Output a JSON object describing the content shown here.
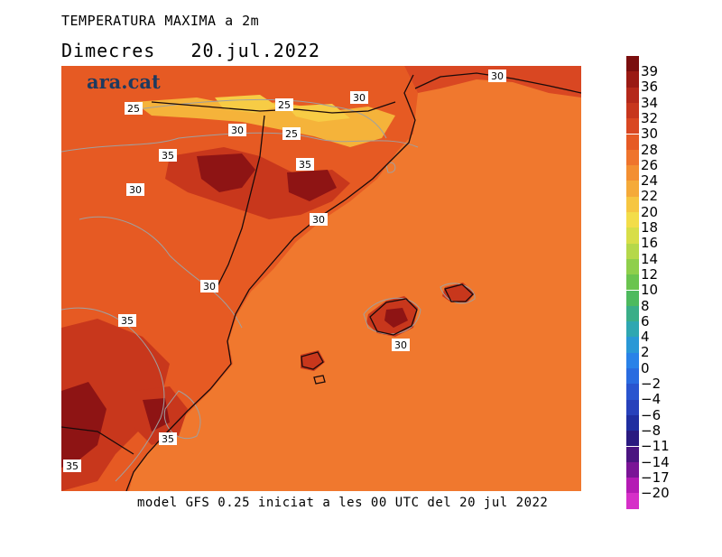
{
  "title": "TEMPERATURA MAXIMA a 2m",
  "subtitle": "Dimecres   20.jul.2022",
  "footer": "model GFS 0.25 iniciat a les 00 UTC del 20 jul 2022",
  "logo": "ara.cat",
  "colors": {
    "sea": "#f0782e",
    "land_warm": "#e65a23",
    "land_hot": "#c8371c",
    "land_hottest": "#8e1414",
    "cool_ridge": "#f5b33a",
    "coolest_ridge": "#f7cc45",
    "coast": "#1a0a0a",
    "contour": "#a0a0a0"
  },
  "contour_labels": [
    {
      "id": "c1",
      "text": "25"
    },
    {
      "id": "c2",
      "text": "25"
    },
    {
      "id": "c3",
      "text": "25"
    },
    {
      "id": "c4",
      "text": "30"
    },
    {
      "id": "c5",
      "text": "30"
    },
    {
      "id": "c6",
      "text": "30"
    },
    {
      "id": "c7",
      "text": "30"
    },
    {
      "id": "c8",
      "text": "30"
    },
    {
      "id": "c9",
      "text": "30"
    },
    {
      "id": "c10",
      "text": "35"
    },
    {
      "id": "c11",
      "text": "35"
    },
    {
      "id": "c12",
      "text": "35"
    },
    {
      "id": "c13",
      "text": "35"
    },
    {
      "id": "c14",
      "text": "35"
    },
    {
      "id": "c15",
      "text": "30"
    },
    {
      "id": "c16",
      "text": "30"
    }
  ],
  "legend": [
    {
      "label": "39",
      "color": "#7a0e0e"
    },
    {
      "label": "36",
      "color": "#9a1a14"
    },
    {
      "label": "34",
      "color": "#b4281a"
    },
    {
      "label": "32",
      "color": "#c7361d"
    },
    {
      "label": "30",
      "color": "#d94722"
    },
    {
      "label": "28",
      "color": "#e65a25"
    },
    {
      "label": "26",
      "color": "#ef742c"
    },
    {
      "label": "24",
      "color": "#f38f31"
    },
    {
      "label": "22",
      "color": "#f5aa39"
    },
    {
      "label": "20",
      "color": "#f6c641"
    },
    {
      "label": "18",
      "color": "#f3dd49"
    },
    {
      "label": "16",
      "color": "#d8de48"
    },
    {
      "label": "14",
      "color": "#b5d84a"
    },
    {
      "label": "12",
      "color": "#8fcf4b"
    },
    {
      "label": "10",
      "color": "#6ac44f"
    },
    {
      "label": "8",
      "color": "#4dba5e"
    },
    {
      "label": "6",
      "color": "#3aae88"
    },
    {
      "label": "4",
      "color": "#2fa7b1"
    },
    {
      "label": "2",
      "color": "#2a98d6"
    },
    {
      "label": "0",
      "color": "#2a82e8"
    },
    {
      "label": "−2",
      "color": "#2a6ce0"
    },
    {
      "label": "−4",
      "color": "#2a55cf"
    },
    {
      "label": "−6",
      "color": "#2741bb"
    },
    {
      "label": "−8",
      "color": "#1f2ea0"
    },
    {
      "label": "−11",
      "color": "#2a1a80"
    },
    {
      "label": "−14",
      "color": "#4a1480"
    },
    {
      "label": "−17",
      "color": "#7a1496"
    },
    {
      "label": "−20",
      "color": "#b41ab4"
    },
    {
      "label": "",
      "color": "#d62fc8"
    }
  ]
}
